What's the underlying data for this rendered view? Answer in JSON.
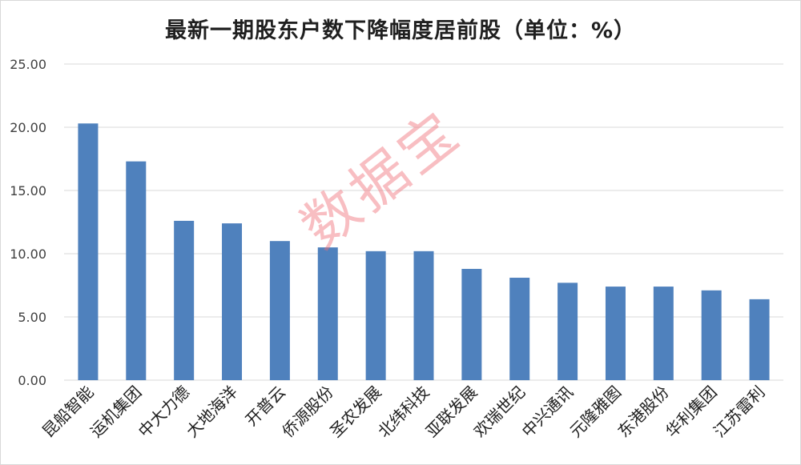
{
  "chart_data": {
    "type": "bar",
    "title": "最新一期股东户数下降幅度居前股（单位：%）",
    "categories": [
      "昆船智能",
      "运机集团",
      "中大力德",
      "大地海洋",
      "开普云",
      "侨源股份",
      "圣农发展",
      "北纬科技",
      "亚联发展",
      "欢瑞世纪",
      "中兴通讯",
      "元隆雅图",
      "东港股份",
      "华利集团",
      "江苏雷利"
    ],
    "values": [
      20.3,
      17.3,
      12.6,
      12.4,
      11.0,
      10.5,
      10.2,
      10.2,
      8.8,
      8.1,
      7.7,
      7.4,
      7.4,
      7.1,
      6.4
    ],
    "ylim": [
      0,
      25
    ],
    "yticks": [
      "0.00",
      "5.00",
      "10.00",
      "15.00",
      "20.00",
      "25.00"
    ],
    "grid": true,
    "bar_color": "#4f81bd",
    "grid_color": "#d9d9d9"
  },
  "watermark": "数据宝"
}
